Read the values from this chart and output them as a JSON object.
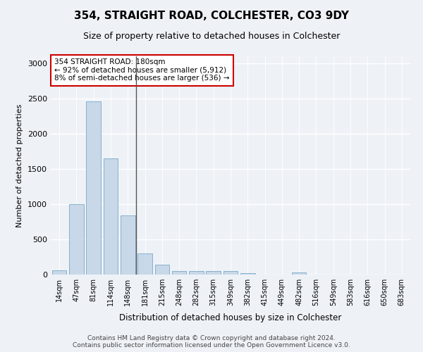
{
  "title1": "354, STRAIGHT ROAD, COLCHESTER, CO3 9DY",
  "title2": "Size of property relative to detached houses in Colchester",
  "xlabel": "Distribution of detached houses by size in Colchester",
  "ylabel": "Number of detached properties",
  "categories": [
    "14sqm",
    "47sqm",
    "81sqm",
    "114sqm",
    "148sqm",
    "181sqm",
    "215sqm",
    "248sqm",
    "282sqm",
    "315sqm",
    "349sqm",
    "382sqm",
    "415sqm",
    "449sqm",
    "482sqm",
    "516sqm",
    "549sqm",
    "583sqm",
    "616sqm",
    "650sqm",
    "683sqm"
  ],
  "values": [
    60,
    1000,
    2460,
    1650,
    840,
    300,
    140,
    55,
    50,
    50,
    50,
    20,
    0,
    0,
    30,
    0,
    0,
    0,
    0,
    0,
    0
  ],
  "bar_color": "#c8d8e8",
  "bar_edge_color": "#7aa8c8",
  "highlight_index": 5,
  "highlight_line_color": "#555555",
  "annotation_text": "354 STRAIGHT ROAD: 180sqm\n← 92% of detached houses are smaller (5,912)\n8% of semi-detached houses are larger (536) →",
  "annotation_box_color": "#ffffff",
  "annotation_box_edge_color": "#cc0000",
  "ylim": [
    0,
    3100
  ],
  "yticks": [
    0,
    500,
    1000,
    1500,
    2000,
    2500,
    3000
  ],
  "footer": "Contains HM Land Registry data © Crown copyright and database right 2024.\nContains public sector information licensed under the Open Government Licence v3.0.",
  "bg_color": "#eef2f7",
  "plot_bg_color": "#eef2f7",
  "grid_color": "#ffffff"
}
